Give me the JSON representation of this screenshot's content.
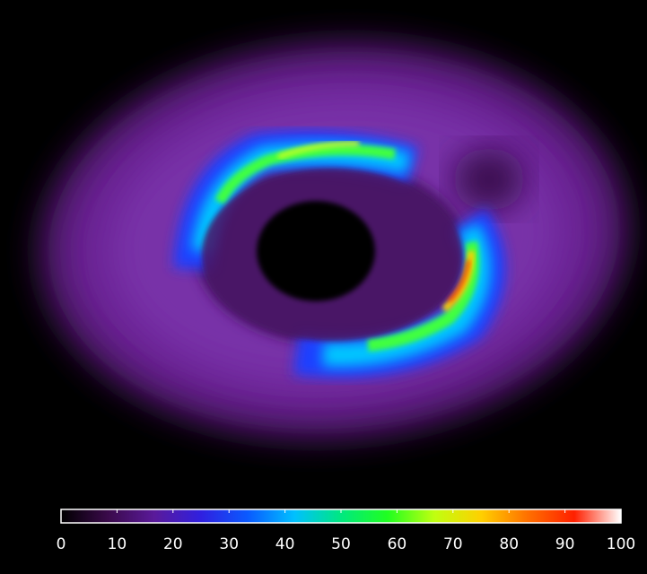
{
  "chart_data": {
    "type": "colorbar",
    "clim": [
      0,
      100
    ],
    "cticks": [
      0,
      10,
      20,
      30,
      40,
      50,
      60,
      70,
      80,
      90,
      100
    ],
    "colormap": [
      "#000000",
      "#3a0a4a",
      "#5a1a9a",
      "#3020e0",
      "#0a5aff",
      "#00c0ff",
      "#00e880",
      "#20ff20",
      "#c0ff10",
      "#ffd000",
      "#ff7000",
      "#ff2000",
      "#ffffff"
    ]
  }
}
